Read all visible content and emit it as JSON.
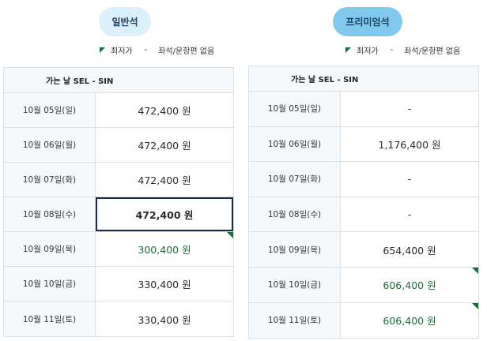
{
  "left": {
    "tab_label": "일반석",
    "legend": {
      "lowest": "최저가",
      "dash": "-",
      "none": "좌석/운항편 없음"
    },
    "header": "가는 날 SEL - SIN",
    "rows": [
      {
        "date": "10월 05일(일)",
        "price": "472,400 원",
        "lowest": false,
        "selected": false
      },
      {
        "date": "10월 06일(월)",
        "price": "472,400 원",
        "lowest": false,
        "selected": false
      },
      {
        "date": "10월 07일(화)",
        "price": "472,400 원",
        "lowest": false,
        "selected": false
      },
      {
        "date": "10월 08일(수)",
        "price": "472,400 원",
        "lowest": false,
        "selected": true
      },
      {
        "date": "10월 09일(목)",
        "price": "300,400 원",
        "lowest": true,
        "selected": false
      },
      {
        "date": "10월 10일(금)",
        "price": "330,400 원",
        "lowest": false,
        "selected": false
      },
      {
        "date": "10월 11일(토)",
        "price": "330,400 원",
        "lowest": false,
        "selected": false
      }
    ]
  },
  "right": {
    "tab_label": "프리미엄석",
    "legend": {
      "lowest": "최저가",
      "dash": "-",
      "none": "좌석/운항편 없음"
    },
    "header": "가는 날 SEL - SIN",
    "rows": [
      {
        "date": "10월 05일(일)",
        "price": "-",
        "lowest": false,
        "selected": false
      },
      {
        "date": "10월 06일(월)",
        "price": "1,176,400 원",
        "lowest": false,
        "selected": false
      },
      {
        "date": "10월 07일(화)",
        "price": "-",
        "lowest": false,
        "selected": false
      },
      {
        "date": "10월 08일(수)",
        "price": "-",
        "lowest": false,
        "selected": false
      },
      {
        "date": "10월 09일(목)",
        "price": "654,400 원",
        "lowest": false,
        "selected": false
      },
      {
        "date": "10월 10일(금)",
        "price": "606,400 원",
        "lowest": true,
        "selected": false
      },
      {
        "date": "10월 11일(토)",
        "price": "606,400 원",
        "lowest": true,
        "selected": false
      }
    ]
  },
  "colors": {
    "lowest_marker": "#1c6b3a",
    "selected_border": "#1b2a44",
    "economy_tab": "#dcf0fb",
    "premium_tab": "#7fcaee"
  }
}
